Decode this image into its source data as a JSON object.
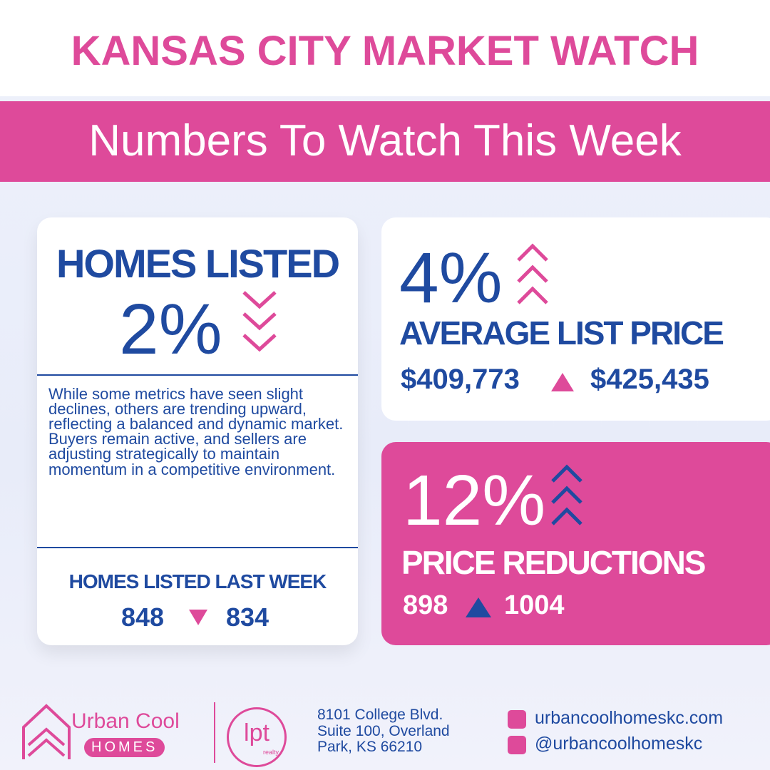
{
  "header": {
    "title": "KANSAS CITY MARKET WATCH",
    "subtitle": "Numbers To Watch This Week"
  },
  "homes_listed": {
    "title": "HOMES LISTED",
    "change": "2%",
    "description": "While some metrics have seen slight declines, others are trending upward, reflecting a balanced and dynamic market. Buyers remain active, and sellers are adjusting strategically to maintain momentum in a competitive environment.",
    "footer_label": "HOMES LISTED LAST WEEK",
    "from": "848",
    "to": "834"
  },
  "average_list_price": {
    "change": "4%",
    "label": "AVERAGE LIST PRICE",
    "from": "$409,773",
    "to": "$425,435"
  },
  "price_reductions": {
    "change": "12%",
    "label": "PRICE REDUCTIONS",
    "from": "898",
    "to": "1004"
  },
  "footer": {
    "brand": "Urban Cool",
    "brand_sub": "HOMES",
    "partner": "lpt",
    "partner_sub": "realty",
    "address": [
      "8101 College Blvd.",
      "Suite 100, Overland",
      "Park, KS 66210"
    ],
    "website": "urbancoolhomeskc.com",
    "social": "@urbancoolhomeskc"
  }
}
